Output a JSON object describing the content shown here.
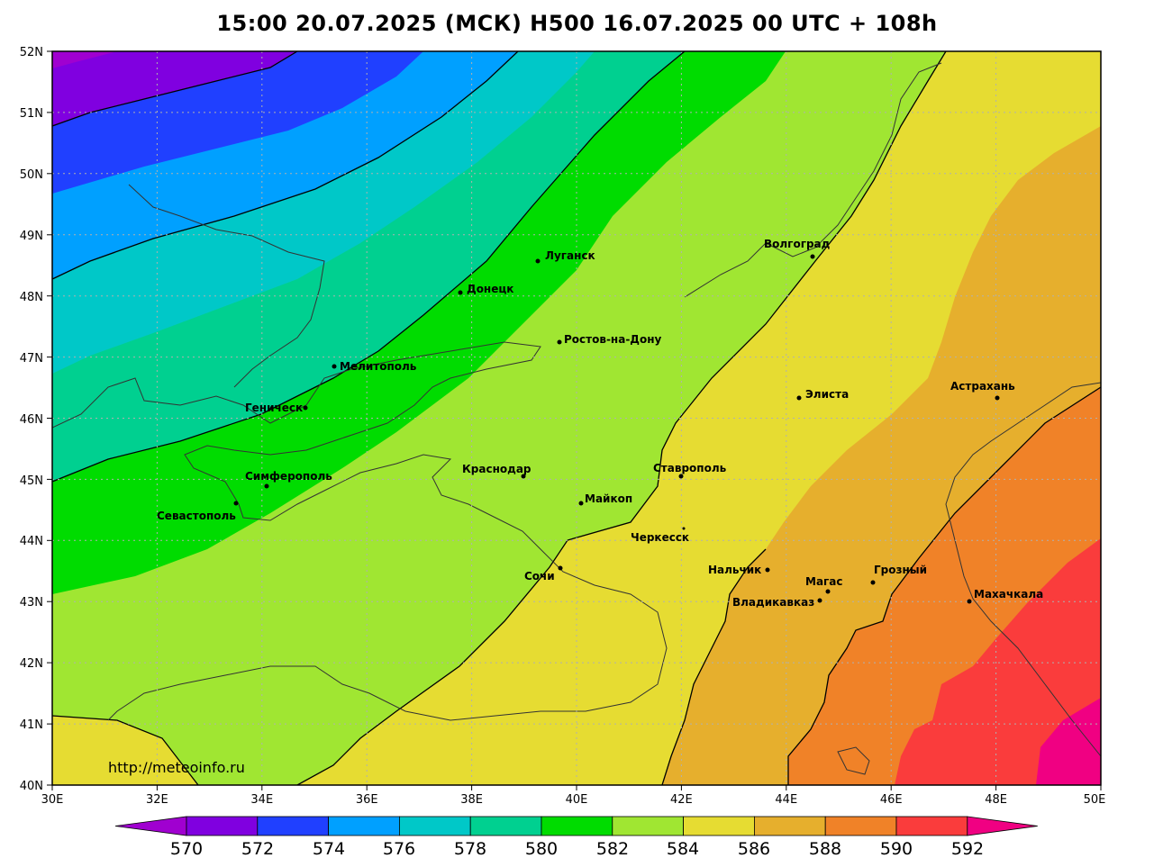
{
  "title": "15:00 20.07.2025 (МСК) H500  16.07.2025 00 UTC + 108h",
  "credit": "http://meteoinfo.ru",
  "lat_labels": [
    "52N",
    "51N",
    "50N",
    "49N",
    "48N",
    "47N",
    "46N",
    "45N",
    "44N",
    "43N",
    "42N",
    "41N",
    "40N"
  ],
  "lon_labels": [
    "30E",
    "32E",
    "34E",
    "36E",
    "38E",
    "40E",
    "42E",
    "44E",
    "46E",
    "48E",
    "50E"
  ],
  "colorbar": {
    "labels": [
      "570",
      "572",
      "574",
      "576",
      "578",
      "580",
      "582",
      "584",
      "586",
      "588",
      "590",
      "592"
    ],
    "colors": [
      "#a000d0",
      "#8000e0",
      "#2040ff",
      "#00a0ff",
      "#00c8c8",
      "#00d090",
      "#00dc00",
      "#a0e632",
      "#e6dc32",
      "#e6af2d",
      "#f08228",
      "#fa3c3c",
      "#f00082"
    ]
  },
  "cities": [
    {
      "name": "Волгоград"
    },
    {
      "name": "Луганск"
    },
    {
      "name": "Донецк"
    },
    {
      "name": "Ростов-на-Дону"
    },
    {
      "name": "Мелитополь"
    },
    {
      "name": "Геническ"
    },
    {
      "name": "Элиста"
    },
    {
      "name": "Астрахань"
    },
    {
      "name": "Краснодар"
    },
    {
      "name": "Симферополь"
    },
    {
      "name": "Ставрополь"
    },
    {
      "name": "Майкоп"
    },
    {
      "name": "Севастополь"
    },
    {
      "name": "Черкесск"
    },
    {
      "name": "Нальчик"
    },
    {
      "name": "Сочи"
    },
    {
      "name": "Магас"
    },
    {
      "name": "Грозный"
    },
    {
      "name": "Владикавказ"
    },
    {
      "name": "Махачкала"
    }
  ]
}
